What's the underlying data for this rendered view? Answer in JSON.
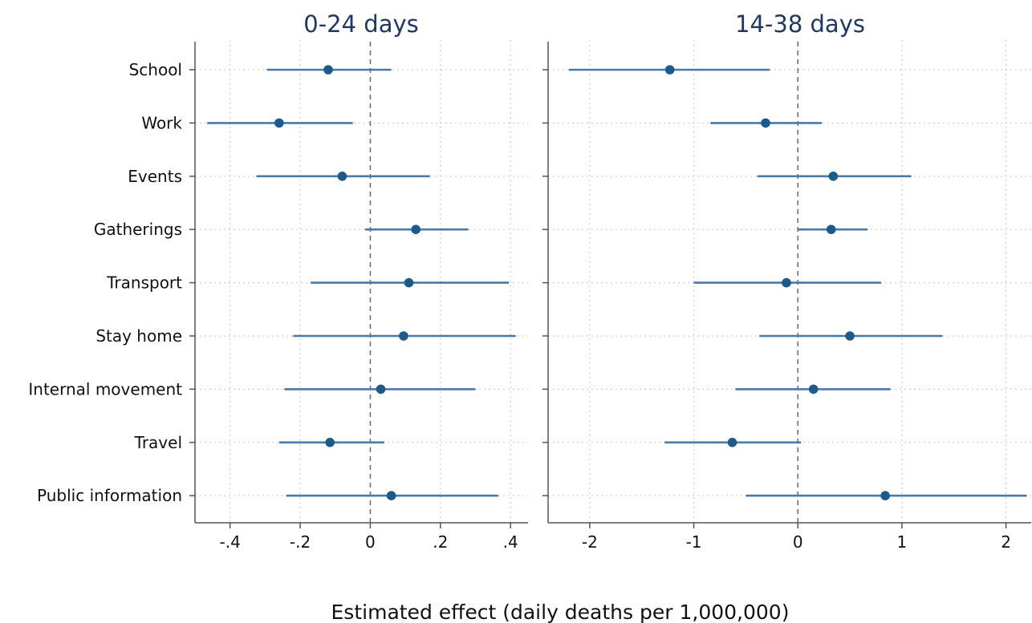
{
  "chart_data": [
    {
      "type": "dot-whisker",
      "title": "0-24 days",
      "categories": [
        "School",
        "Work",
        "Events",
        "Gatherings",
        "Transport",
        "Stay home",
        "Internal movement",
        "Travel",
        "Public information"
      ],
      "estimates": [
        -0.12,
        -0.26,
        -0.08,
        0.13,
        0.11,
        0.095,
        0.03,
        -0.115,
        0.06
      ],
      "ci_low": [
        -0.295,
        -0.465,
        -0.325,
        -0.015,
        -0.17,
        -0.22,
        -0.245,
        -0.26,
        -0.24
      ],
      "ci_high": [
        0.06,
        -0.05,
        0.17,
        0.28,
        0.395,
        0.415,
        0.3,
        0.04,
        0.365
      ],
      "xlim": [
        -0.5,
        0.45
      ],
      "xticks": [
        -0.4,
        -0.2,
        0,
        0.2,
        0.4
      ],
      "xtick_labels": [
        "-.4",
        "-.2",
        "0",
        ".2",
        ".4"
      ],
      "reference_line": 0,
      "grid": true
    },
    {
      "type": "dot-whisker",
      "title": "14-38 days",
      "categories": [
        "School",
        "Work",
        "Events",
        "Gatherings",
        "Transport",
        "Stay home",
        "Internal movement",
        "Travel",
        "Public information"
      ],
      "estimates": [
        -1.23,
        -0.31,
        0.34,
        0.32,
        -0.11,
        0.5,
        0.15,
        -0.63,
        0.84
      ],
      "ci_low": [
        -2.2,
        -0.84,
        -0.39,
        0.0,
        -1.0,
        -0.37,
        -0.6,
        -1.28,
        -0.5
      ],
      "ci_high": [
        -0.27,
        0.23,
        1.09,
        0.67,
        0.8,
        1.39,
        0.89,
        0.03,
        2.2
      ],
      "xlim": [
        -2.4,
        2.25
      ],
      "xticks": [
        -2,
        -1,
        0,
        1,
        2
      ],
      "xtick_labels": [
        "-2",
        "-1",
        "0",
        "1",
        "2"
      ],
      "reference_line": 0,
      "grid": true
    }
  ],
  "xlabel": "Estimated effect (daily deaths per 1,000,000)",
  "colors": {
    "ci": "#4a79a8",
    "point": "#1c5a8c",
    "title": "#1f3864"
  }
}
